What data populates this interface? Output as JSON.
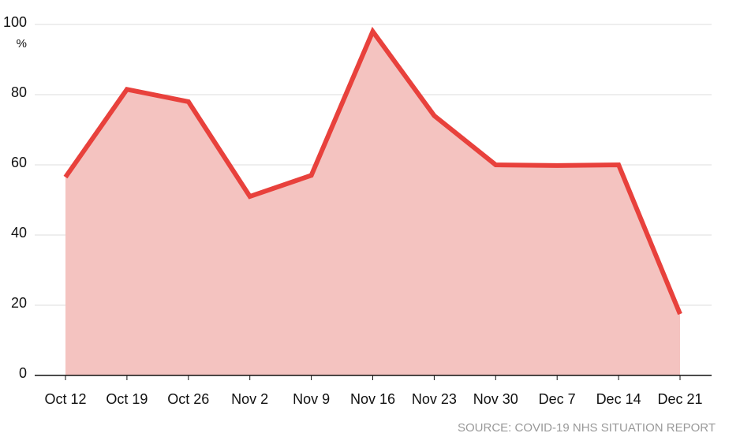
{
  "chart_data": {
    "type": "area",
    "categories": [
      "Oct 12",
      "Oct 19",
      "Oct 26",
      "Nov 2",
      "Nov 9",
      "Nov 16",
      "Nov 23",
      "Nov 30",
      "Dec 7",
      "Dec 14",
      "Dec 21"
    ],
    "values": [
      56.5,
      81.5,
      78,
      51,
      57,
      98,
      74,
      60,
      59.8,
      60,
      17.5
    ],
    "color": "#e8413c",
    "fill": "#f4c3c0",
    "ylim": [
      0,
      100
    ],
    "yticks": [
      0,
      20,
      40,
      60,
      80,
      100
    ],
    "y_unit": "%",
    "grid": true,
    "source": "SOURCE: COVID-19 NHS SITUATION REPORT"
  }
}
